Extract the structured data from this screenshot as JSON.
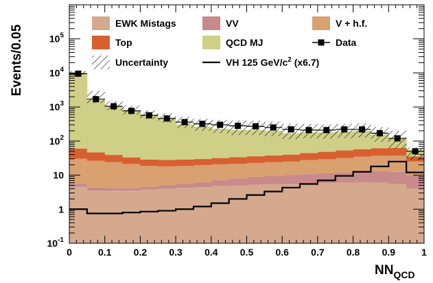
{
  "chart_data": {
    "type": "area",
    "xlabel": "NN",
    "xlabel_sub": "QCD",
    "ylabel": "Events/0.05",
    "xlim": [
      0,
      1
    ],
    "ylim": [
      0.1,
      1000000
    ],
    "log_y": true,
    "grid": false,
    "bins": [
      0,
      0.05,
      0.1,
      0.15,
      0.2,
      0.25,
      0.3,
      0.35,
      0.4,
      0.45,
      0.5,
      0.55,
      0.6,
      0.65,
      0.7,
      0.75,
      0.8,
      0.85,
      0.9,
      0.95,
      1.0
    ],
    "x_ticks": [
      0,
      0.1,
      0.2,
      0.3,
      0.4,
      0.5,
      0.6,
      0.7,
      0.8,
      0.9,
      1
    ],
    "x_tick_labels": [
      "0",
      "0.1",
      "0.2",
      "0.3",
      "0.4",
      "0.5",
      "0.6",
      "0.7",
      "0.8",
      "0.9",
      "1"
    ],
    "y_ticks": [
      0.1,
      1,
      10,
      100,
      1000,
      10000,
      100000
    ],
    "y_tick_labels": [
      {
        "base": "10",
        "exp": "-1"
      },
      {
        "base": "1",
        "exp": ""
      },
      {
        "base": "10",
        "exp": ""
      },
      {
        "base": "10",
        "exp": "2"
      },
      {
        "base": "10",
        "exp": "3"
      },
      {
        "base": "10",
        "exp": "4"
      },
      {
        "base": "10",
        "exp": "5"
      }
    ],
    "stack": [
      {
        "name": "EWK Mistags",
        "color": "#d4a98e",
        "values": [
          4.5,
          3.5,
          3.5,
          3.5,
          3.8,
          4,
          4.2,
          4.4,
          4.8,
          5,
          5.2,
          5.4,
          5.5,
          5.6,
          5.8,
          6,
          6.2,
          6,
          5.5,
          4
        ]
      },
      {
        "name": "VV",
        "color": "#c88a8a",
        "values": [
          1.0,
          0.8,
          0.7,
          0.7,
          0.8,
          1.0,
          1.3,
          1.8,
          2.4,
          3,
          3.5,
          4,
          4.5,
          5,
          5.5,
          6,
          6.5,
          7,
          7,
          6
        ]
      },
      {
        "name": "V + h.f.",
        "color": "#d9a070",
        "values": [
          25,
          22,
          20,
          17,
          14,
          13,
          13,
          13.5,
          13.5,
          13.5,
          14,
          14.5,
          15,
          17,
          18,
          20,
          22,
          24,
          25,
          15
        ]
      },
      {
        "name": "Top",
        "color": "#d86030",
        "values": [
          30,
          20,
          15,
          12,
          10,
          10,
          10,
          10,
          11,
          12,
          13,
          14,
          15,
          17,
          19,
          21,
          23,
          25,
          25,
          10
        ]
      },
      {
        "name": "QCD MJ",
        "color": "#cfcf88",
        "values": [
          9939.5,
          1553.7,
          961.3,
          716.8,
          521.4,
          412,
          281.5,
          234.3,
          198.3,
          176.5,
          174.3,
          162.1,
          130,
          135.4,
          131.7,
          137,
          142.3,
          97,
          57.5,
          20
        ]
      }
    ],
    "uncertainty": {
      "label": "Uncertainty",
      "lower": [
        8500,
        1300,
        800,
        600,
        440,
        350,
        240,
        200,
        170,
        150,
        150,
        140,
        115,
        120,
        118,
        122,
        128,
        95,
        60,
        28
      ],
      "upper": [
        11500,
        3000,
        1500,
        1100,
        800,
        650,
        520,
        450,
        420,
        400,
        400,
        370,
        320,
        320,
        310,
        320,
        330,
        260,
        200,
        65
      ]
    },
    "data": {
      "name": "Data",
      "values": [
        9500,
        1700,
        1050,
        770,
        570,
        460,
        360,
        320,
        300,
        280,
        270,
        250,
        220,
        210,
        210,
        220,
        220,
        170,
        120,
        50
      ],
      "errors": [
        100,
        40,
        32,
        28,
        24,
        21,
        19,
        18,
        17,
        17,
        16,
        16,
        15,
        14,
        14,
        15,
        15,
        13,
        11,
        7
      ]
    },
    "signal": {
      "name": "VH 125 GeV/c² (x6.7)",
      "label_main": "VH 125 GeV/c",
      "label_sup": "2",
      "label_tail": " (x6.7)",
      "color": "#000000",
      "values": [
        1.0,
        0.75,
        0.75,
        0.8,
        0.85,
        0.9,
        1.0,
        1.2,
        1.5,
        2,
        2.6,
        3.3,
        4.3,
        5.5,
        7,
        9.5,
        12.5,
        18,
        25,
        12
      ]
    },
    "legend": {
      "placement": "top",
      "items": [
        {
          "name": "EWK Mistags",
          "kind": "fill",
          "color": "#d4a98e"
        },
        {
          "name": "VV",
          "kind": "fill",
          "color": "#c88a8a"
        },
        {
          "name": "V + h.f.",
          "kind": "fill",
          "color": "#d9a070"
        },
        {
          "name": "Top",
          "kind": "fill",
          "color": "#d86030"
        },
        {
          "name": "QCD MJ",
          "kind": "fill",
          "color": "#cfcf88"
        },
        {
          "name": "Data",
          "kind": "marker",
          "color": "#000000"
        },
        {
          "name": "Uncertainty",
          "kind": "hatch",
          "color": "#000000"
        },
        {
          "name": "VH 125 GeV/c² (x6.7)",
          "kind": "line",
          "color": "#000000"
        }
      ]
    }
  }
}
